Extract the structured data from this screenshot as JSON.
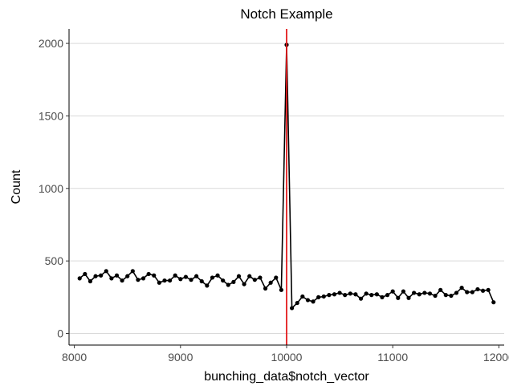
{
  "chart_data": {
    "type": "line",
    "title": "Notch Example",
    "xlabel": "bunching_data$notch_vector",
    "ylabel": "Count",
    "xlim": [
      7950,
      12050
    ],
    "ylim": [
      -80,
      2100
    ],
    "x_ticks": [
      8000,
      9000,
      10000,
      11000,
      12000
    ],
    "y_ticks": [
      0,
      500,
      1000,
      1500,
      2000
    ],
    "x_tick_labels": [
      "8000",
      "9000",
      "10000",
      "11000",
      "12000"
    ],
    "y_tick_labels": [
      "0",
      "500",
      "1000",
      "1500",
      "2000"
    ],
    "grid": "horizontal major",
    "line_color": "#000000",
    "point_color": "#000000",
    "vline": {
      "x": 10000,
      "color": "#e41a1c"
    },
    "series": [
      {
        "x": [
          8050,
          8100,
          8150,
          8200,
          8250,
          8300,
          8350,
          8400,
          8450,
          8500,
          8550,
          8600,
          8650,
          8700,
          8750,
          8800,
          8850,
          8900,
          8950,
          9000,
          9050,
          9100,
          9150,
          9200,
          9250,
          9300,
          9350,
          9400,
          9450,
          9500,
          9550,
          9600,
          9650,
          9700,
          9750,
          9800,
          9850,
          9900,
          9950,
          10000,
          10050,
          10100,
          10150,
          10200,
          10250,
          10300,
          10350,
          10400,
          10450,
          10500,
          10550,
          10600,
          10650,
          10700,
          10750,
          10800,
          10850,
          10900,
          10950,
          11000,
          11050,
          11100,
          11150,
          11200,
          11250,
          11300,
          11350,
          11400,
          11450,
          11500,
          11550,
          11600,
          11650,
          11700,
          11750,
          11800,
          11850,
          11900,
          11950
        ],
        "values": [
          380,
          410,
          360,
          395,
          400,
          430,
          380,
          400,
          365,
          395,
          430,
          370,
          380,
          410,
          400,
          350,
          365,
          365,
          400,
          375,
          390,
          370,
          395,
          360,
          330,
          385,
          400,
          365,
          335,
          355,
          395,
          340,
          395,
          370,
          385,
          310,
          350,
          385,
          300,
          1990,
          175,
          210,
          255,
          230,
          220,
          250,
          255,
          265,
          270,
          280,
          265,
          275,
          270,
          240,
          275,
          265,
          270,
          250,
          265,
          290,
          245,
          290,
          245,
          280,
          270,
          280,
          275,
          260,
          300,
          265,
          260,
          280,
          315,
          285,
          285,
          305,
          295,
          300,
          215
        ]
      }
    ]
  }
}
